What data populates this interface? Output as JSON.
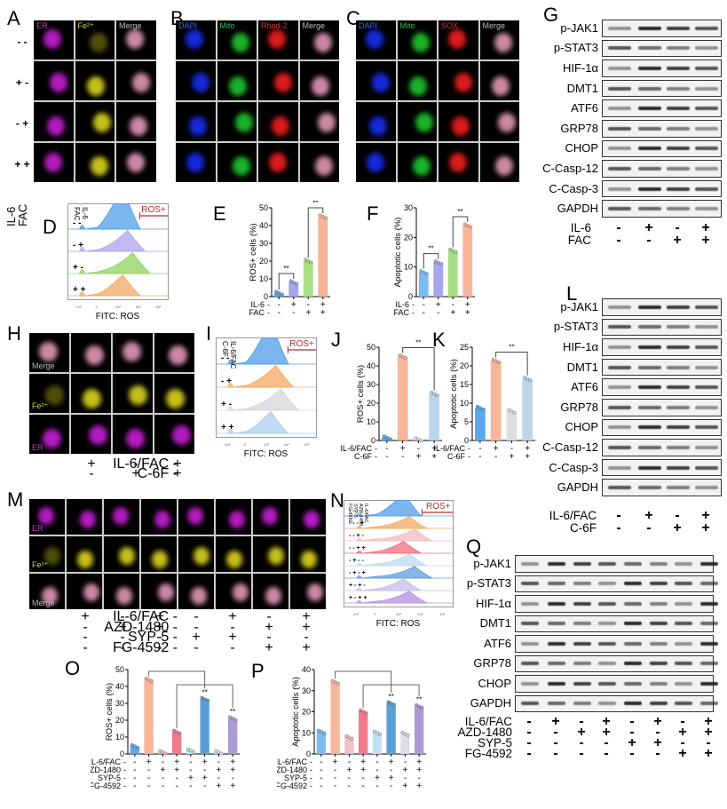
{
  "panels": {
    "A": {
      "label": "A",
      "channels": [
        "ER",
        "Fe2+",
        "Merge"
      ],
      "row_conditions": [
        [
          "-",
          "-"
        ],
        [
          "+",
          "-"
        ],
        [
          "-",
          "+"
        ],
        [
          "+",
          "+"
        ]
      ],
      "factor_labels": [
        "IL-6",
        "FAC"
      ]
    },
    "B": {
      "label": "B",
      "channels": [
        "DAPI",
        "Mito",
        "Rhod-2",
        "Merge"
      ]
    },
    "C": {
      "label": "C",
      "channels": [
        "DAPI",
        "Mito",
        "SOX",
        "Merge"
      ]
    },
    "D": {
      "label": "D",
      "factor_labels": [
        "IL-6",
        "FAC"
      ],
      "rows": [
        [
          "-",
          "-"
        ],
        [
          "-",
          "+"
        ],
        [
          "+",
          "-"
        ],
        [
          "+",
          "+"
        ]
      ],
      "gate_label": "ROS+",
      "xlabel": "FITC: ROS",
      "colors": [
        "#4f9de8",
        "#a9a4ec",
        "#8fd45c",
        "#f5a860"
      ]
    },
    "G": {
      "label": "G",
      "proteins": [
        "p-JAK1",
        "p-STAT3",
        "HIF-1α",
        "DMT1",
        "ATF6",
        "GRP78",
        "CHOP",
        "C-Casp-12",
        "C-Casp-3",
        "GAPDH"
      ],
      "conditions": [
        {
          "name": "IL-6",
          "values": [
            "-",
            "+",
            "-",
            "+"
          ]
        },
        {
          "name": "FAC",
          "values": [
            "-",
            "-",
            "+",
            "+"
          ]
        }
      ]
    },
    "H": {
      "label": "H",
      "channels": [
        "Merge",
        "Fe2+",
        "ER"
      ],
      "conditions": [
        {
          "name": "IL-6/FAC",
          "values": [
            "-",
            "+",
            "-",
            "+"
          ]
        },
        {
          "name": "C-6F",
          "values": [
            "-",
            "-",
            "+",
            "+"
          ]
        }
      ]
    },
    "I": {
      "label": "I",
      "factor_labels": [
        "IL-6/FAC",
        "C-6F"
      ],
      "rows": [
        [
          "-",
          "-"
        ],
        [
          "-",
          "+"
        ],
        [
          "+",
          "-"
        ],
        [
          "+",
          "+"
        ]
      ],
      "gate_label": "ROS+",
      "xlabel": "FITC: ROS",
      "colors": [
        "#4f9de8",
        "#f5a860",
        "#d6d6d6",
        "#a8cdf0"
      ]
    },
    "L": {
      "label": "L",
      "proteins": [
        "p-JAK1",
        "p-STAT3",
        "HIF-1α",
        "DMT1",
        "ATF6",
        "GRP78",
        "CHOP",
        "C-Casp-12",
        "C-Casp-3",
        "GAPDH"
      ],
      "conditions": [
        {
          "name": "IL-6/FAC",
          "values": [
            "-",
            "+",
            "-",
            "+"
          ]
        },
        {
          "name": "C-6F",
          "values": [
            "-",
            "-",
            "+",
            "+"
          ]
        }
      ]
    },
    "M": {
      "label": "M",
      "channels": [
        "ER",
        "Fe2+",
        "Merge"
      ],
      "conditions": [
        {
          "name": "IL-6/FAC",
          "values": [
            "-",
            "+",
            "-",
            "+",
            "-",
            "+",
            "-",
            "+"
          ]
        },
        {
          "name": "AZD-1480",
          "values": [
            "-",
            "-",
            "+",
            "+",
            "-",
            "-",
            "+",
            "+"
          ]
        },
        {
          "name": "SYP-5",
          "values": [
            "-",
            "-",
            "-",
            "-",
            "+",
            "+",
            "-",
            "-"
          ]
        },
        {
          "name": "FG-4592",
          "values": [
            "-",
            "-",
            "-",
            "-",
            "-",
            "-",
            "+",
            "+"
          ]
        }
      ]
    },
    "N": {
      "label": "N",
      "factor_labels": [
        "IL-6/FAC",
        "AZD-1480",
        "SYP-5",
        "FG-4592"
      ],
      "rows": [
        "- - - -",
        "- - - +",
        "- - + -",
        "- - + +",
        "- + - -",
        "- + - +",
        "+ - + -",
        "+ - + +"
      ],
      "gate_label": "ROS+",
      "xlabel": "FITC: ROS",
      "colors": [
        "#4f9de8",
        "#f5a860",
        "#f4b8c0",
        "#ef6f7f",
        "#bcd8f3",
        "#5b9ddb",
        "#c5bce8",
        "#b58ee0"
      ]
    },
    "Q": {
      "label": "Q",
      "proteins": [
        "p-JAK1",
        "p-STAT3",
        "HIF-1α",
        "DMT1",
        "ATF6",
        "GRP78",
        "CHOP",
        "GAPDH"
      ],
      "conditions": [
        {
          "name": "IL-6/FAC",
          "values": [
            "-",
            "+",
            "-",
            "+",
            "-",
            "+",
            "-",
            "+"
          ]
        },
        {
          "name": "AZD-1480",
          "values": [
            "-",
            "-",
            "+",
            "+",
            "-",
            "-",
            "+",
            "+"
          ]
        },
        {
          "name": "SYP-5",
          "values": [
            "-",
            "-",
            "-",
            "-",
            "+",
            "+",
            "-",
            "-"
          ]
        },
        {
          "name": "FG-4592",
          "values": [
            "-",
            "-",
            "-",
            "-",
            "-",
            "-",
            "+",
            "+"
          ]
        }
      ]
    }
  },
  "chart_data": [
    {
      "panel": "E",
      "type": "bar",
      "title": "",
      "ylabel": "ROS+ cells (%)",
      "ylim": [
        0,
        50
      ],
      "yticks": [
        0,
        10,
        20,
        30,
        40,
        50
      ],
      "categories": [
        "-/-",
        "+/-",
        "-/+",
        "+/+"
      ],
      "condition_rows": [
        {
          "name": "IL-6",
          "values": [
            "-",
            "+",
            "-",
            "+"
          ]
        },
        {
          "name": "FAC",
          "values": [
            "-",
            "-",
            "+",
            "+"
          ]
        }
      ],
      "values": [
        2,
        8,
        20,
        45
      ],
      "colors": [
        "#5aa8ee",
        "#a9a4ec",
        "#a8df85",
        "#f7b59a"
      ],
      "significance": [
        {
          "between": [
            0,
            1
          ],
          "label": "**"
        },
        {
          "between": [
            2,
            3
          ],
          "label": "**"
        }
      ]
    },
    {
      "panel": "F",
      "type": "bar",
      "title": "",
      "ylabel": "Apoptotic cells (%)",
      "ylim": [
        0,
        30
      ],
      "yticks": [
        0,
        10,
        20,
        30
      ],
      "categories": [
        "-/-",
        "+/-",
        "-/+",
        "+/+"
      ],
      "condition_rows": [
        {
          "name": "IL-6",
          "values": [
            "-",
            "+",
            "-",
            "+"
          ]
        },
        {
          "name": "FAC",
          "values": [
            "-",
            "-",
            "+",
            "+"
          ]
        }
      ],
      "values": [
        8.2,
        11.5,
        15.5,
        24
      ],
      "colors": [
        "#7bbcf2",
        "#a9a4ec",
        "#a8df85",
        "#f7b59a"
      ],
      "significance": [
        {
          "between": [
            0,
            1
          ],
          "label": "**"
        },
        {
          "between": [
            2,
            3
          ],
          "label": "**"
        }
      ]
    },
    {
      "panel": "J",
      "type": "bar",
      "title": "",
      "ylabel": "ROS+ cells (%)",
      "ylim": [
        0,
        50
      ],
      "yticks": [
        0,
        10,
        20,
        30,
        40,
        50
      ],
      "categories": [
        "-/-",
        "+/-",
        "-/+",
        "+/+"
      ],
      "condition_rows": [
        {
          "name": "IL-6/FAC",
          "values": [
            "-",
            "+",
            "-",
            "+"
          ]
        },
        {
          "name": "C-6F",
          "values": [
            "-",
            "-",
            "+",
            "+"
          ]
        }
      ],
      "values": [
        1.5,
        45,
        0.5,
        25
      ],
      "colors": [
        "#5aa8ee",
        "#f7b59a",
        "#dedede",
        "#bcd5ea"
      ],
      "significance": [
        {
          "between": [
            1,
            3
          ],
          "label": "**"
        }
      ]
    },
    {
      "panel": "K",
      "type": "bar",
      "title": "",
      "ylabel": "Apoptotic cells (%)",
      "ylim": [
        0,
        25
      ],
      "yticks": [
        0,
        5,
        10,
        15,
        20,
        25
      ],
      "categories": [
        "-/-",
        "+/-",
        "-/+",
        "+/+"
      ],
      "condition_rows": [
        {
          "name": "IL-6/FAC",
          "values": [
            "-",
            "+",
            "-",
            "+"
          ]
        },
        {
          "name": "C-6F",
          "values": [
            "-",
            "-",
            "+",
            "+"
          ]
        }
      ],
      "values": [
        8.7,
        21.3,
        7.8,
        16.5
      ],
      "colors": [
        "#5aa8ee",
        "#f7b59a",
        "#dedede",
        "#bcd5ea"
      ],
      "significance": [
        {
          "between": [
            1,
            3
          ],
          "label": "**"
        }
      ]
    },
    {
      "panel": "O",
      "type": "bar",
      "title": "",
      "ylabel": "ROS+ cells (%)",
      "ylim": [
        0,
        50
      ],
      "yticks": [
        0,
        10,
        20,
        30,
        40,
        50
      ],
      "categories": [
        "1",
        "2",
        "3",
        "4",
        "5",
        "6",
        "7",
        "8"
      ],
      "condition_rows": [
        {
          "name": "IL-6/FAC",
          "values": [
            "-",
            "+",
            "-",
            "+",
            "-",
            "+",
            "-",
            "+"
          ]
        },
        {
          "name": "AZD-1480",
          "values": [
            "-",
            "-",
            "+",
            "+",
            "-",
            "-",
            "+",
            "+"
          ]
        },
        {
          "name": "SYP-5",
          "values": [
            "-",
            "-",
            "-",
            "-",
            "+",
            "+",
            "-",
            "-"
          ]
        },
        {
          "name": "FG-4592",
          "values": [
            "-",
            "-",
            "-",
            "-",
            "-",
            "-",
            "+",
            "+"
          ]
        }
      ],
      "values": [
        4.5,
        44,
        1,
        13,
        2,
        32.5,
        1,
        21
      ],
      "colors": [
        "#5aa8ee",
        "#f7b59a",
        "#f2c0c8",
        "#ef7a8c",
        "#bfe0f0",
        "#5b9fd4",
        "#dcdcec",
        "#a99cd6"
      ],
      "significance": [
        {
          "between": [
            1,
            5
          ],
          "label": "**"
        },
        {
          "between": [
            3,
            7
          ],
          "label": "**"
        }
      ]
    },
    {
      "panel": "P",
      "type": "bar",
      "title": "",
      "ylabel": "Apoptotic cells (%)",
      "ylim": [
        0,
        40
      ],
      "yticks": [
        0,
        10,
        20,
        30,
        40
      ],
      "categories": [
        "1",
        "2",
        "3",
        "4",
        "5",
        "6",
        "7",
        "8"
      ],
      "condition_rows": [
        {
          "name": "IL-6/FAC",
          "values": [
            "-",
            "+",
            "-",
            "+",
            "-",
            "+",
            "-",
            "+"
          ]
        },
        {
          "name": "AZD-1480",
          "values": [
            "-",
            "-",
            "+",
            "+",
            "-",
            "-",
            "+",
            "+"
          ]
        },
        {
          "name": "SYP-5",
          "values": [
            "-",
            "-",
            "-",
            "-",
            "+",
            "+",
            "-",
            "-"
          ]
        },
        {
          "name": "FG-4592",
          "values": [
            "-",
            "-",
            "-",
            "-",
            "-",
            "-",
            "+",
            "+"
          ]
        }
      ],
      "values": [
        10.5,
        34,
        7.8,
        20,
        10,
        24,
        9.5,
        22.5
      ],
      "colors": [
        "#7bbcf2",
        "#f7b59a",
        "#f2c0c8",
        "#ef7a8c",
        "#bfe0f0",
        "#5b9fd4",
        "#dcdcec",
        "#a99cd6"
      ],
      "significance": [
        {
          "between": [
            1,
            5
          ],
          "label": "**"
        },
        {
          "between": [
            3,
            7
          ],
          "label": "**"
        }
      ]
    }
  ]
}
